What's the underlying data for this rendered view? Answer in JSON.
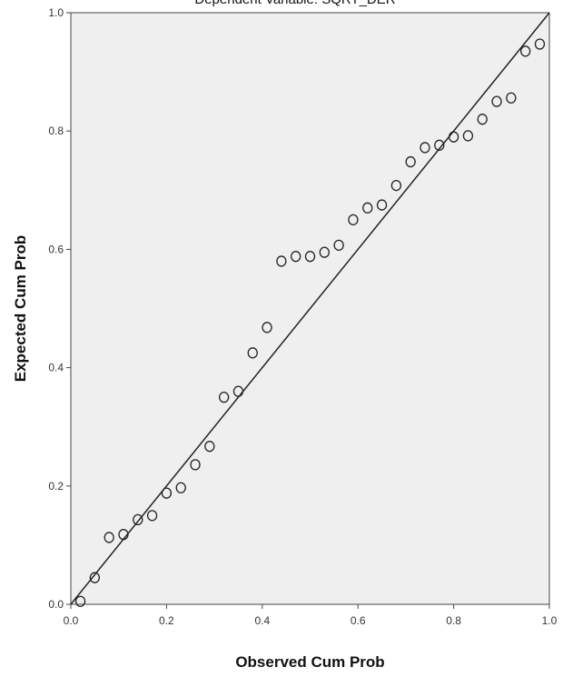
{
  "chart_data": {
    "type": "scatter",
    "title": "Dependent Variable: SQRT_DER",
    "xlabel": "Observed Cum Prob",
    "ylabel": "Expected Cum Prob",
    "xlim": [
      0.0,
      1.0
    ],
    "ylim": [
      0.0,
      1.0
    ],
    "x_ticks": [
      "0.0",
      "0.2",
      "0.4",
      "0.6",
      "0.8",
      "1.0"
    ],
    "y_ticks": [
      "0.0",
      "0.2",
      "0.4",
      "0.6",
      "0.8",
      "1.0"
    ],
    "grid": false,
    "reference_line": {
      "from": [
        0.0,
        0.0
      ],
      "to": [
        1.0,
        1.0
      ]
    },
    "point_marker": "open-circle",
    "points": [
      {
        "x": 0.02,
        "y": 0.005
      },
      {
        "x": 0.05,
        "y": 0.045
      },
      {
        "x": 0.08,
        "y": 0.113
      },
      {
        "x": 0.11,
        "y": 0.118
      },
      {
        "x": 0.14,
        "y": 0.143
      },
      {
        "x": 0.17,
        "y": 0.15
      },
      {
        "x": 0.2,
        "y": 0.188
      },
      {
        "x": 0.23,
        "y": 0.197
      },
      {
        "x": 0.26,
        "y": 0.236
      },
      {
        "x": 0.29,
        "y": 0.267
      },
      {
        "x": 0.32,
        "y": 0.35
      },
      {
        "x": 0.35,
        "y": 0.36
      },
      {
        "x": 0.38,
        "y": 0.425
      },
      {
        "x": 0.41,
        "y": 0.468
      },
      {
        "x": 0.44,
        "y": 0.58
      },
      {
        "x": 0.47,
        "y": 0.588
      },
      {
        "x": 0.5,
        "y": 0.588
      },
      {
        "x": 0.53,
        "y": 0.595
      },
      {
        "x": 0.56,
        "y": 0.607
      },
      {
        "x": 0.59,
        "y": 0.65
      },
      {
        "x": 0.62,
        "y": 0.67
      },
      {
        "x": 0.65,
        "y": 0.675
      },
      {
        "x": 0.68,
        "y": 0.708
      },
      {
        "x": 0.71,
        "y": 0.748
      },
      {
        "x": 0.74,
        "y": 0.772
      },
      {
        "x": 0.77,
        "y": 0.776
      },
      {
        "x": 0.8,
        "y": 0.79
      },
      {
        "x": 0.83,
        "y": 0.792
      },
      {
        "x": 0.86,
        "y": 0.82
      },
      {
        "x": 0.89,
        "y": 0.85
      },
      {
        "x": 0.92,
        "y": 0.856
      },
      {
        "x": 0.95,
        "y": 0.935
      },
      {
        "x": 0.98,
        "y": 0.947
      }
    ],
    "colors": {
      "plot_background": "#efefef",
      "frame": "#444444",
      "point_stroke": "#222222",
      "reference_line": "#222222"
    }
  }
}
